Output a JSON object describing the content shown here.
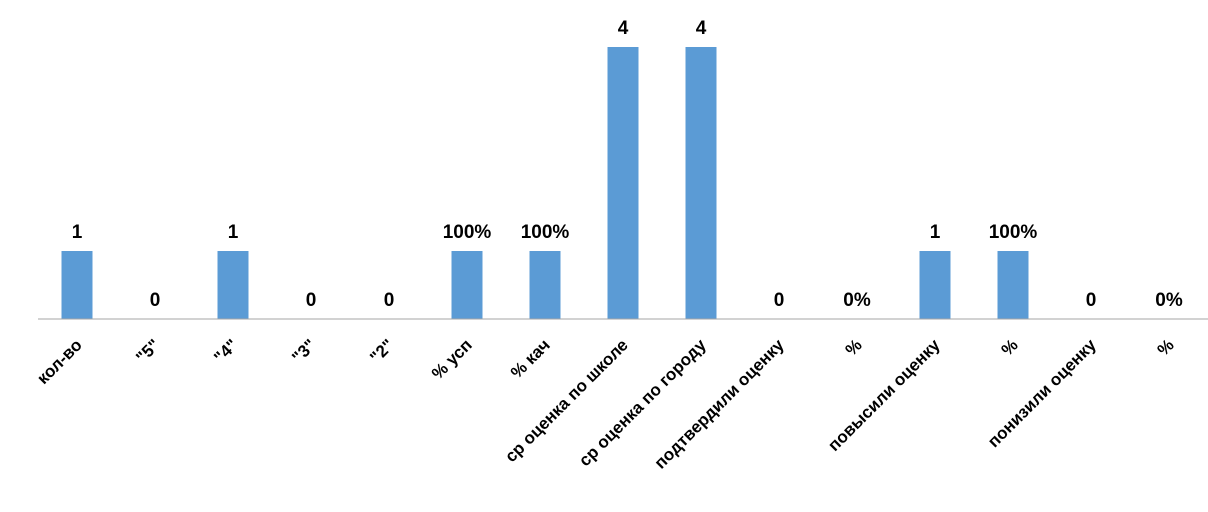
{
  "chart_data": {
    "type": "bar",
    "categories": [
      "кол-во",
      "\"5\"",
      "\"4\"",
      "\"3\"",
      "\"2\"",
      "% усп",
      "% кач",
      "ср оценка по школе",
      "ср оценка по городу",
      "подтвердили оценку",
      "%",
      "повысили оценку",
      "%",
      "понизили оценку",
      "%"
    ],
    "values": [
      1,
      0,
      1,
      0,
      0,
      1,
      1,
      4,
      4,
      0,
      0,
      1,
      1,
      0,
      0
    ],
    "data_labels": [
      "1",
      "0",
      "1",
      "0",
      "0",
      "100%",
      "100%",
      "4",
      "4",
      "0",
      "0%",
      "1",
      "100%",
      "0",
      "0%"
    ],
    "ylim": [
      0,
      4
    ],
    "grid": false,
    "legend": "none",
    "bar_color": "#5B9BD5",
    "axis_color": "#A6A6A6"
  }
}
